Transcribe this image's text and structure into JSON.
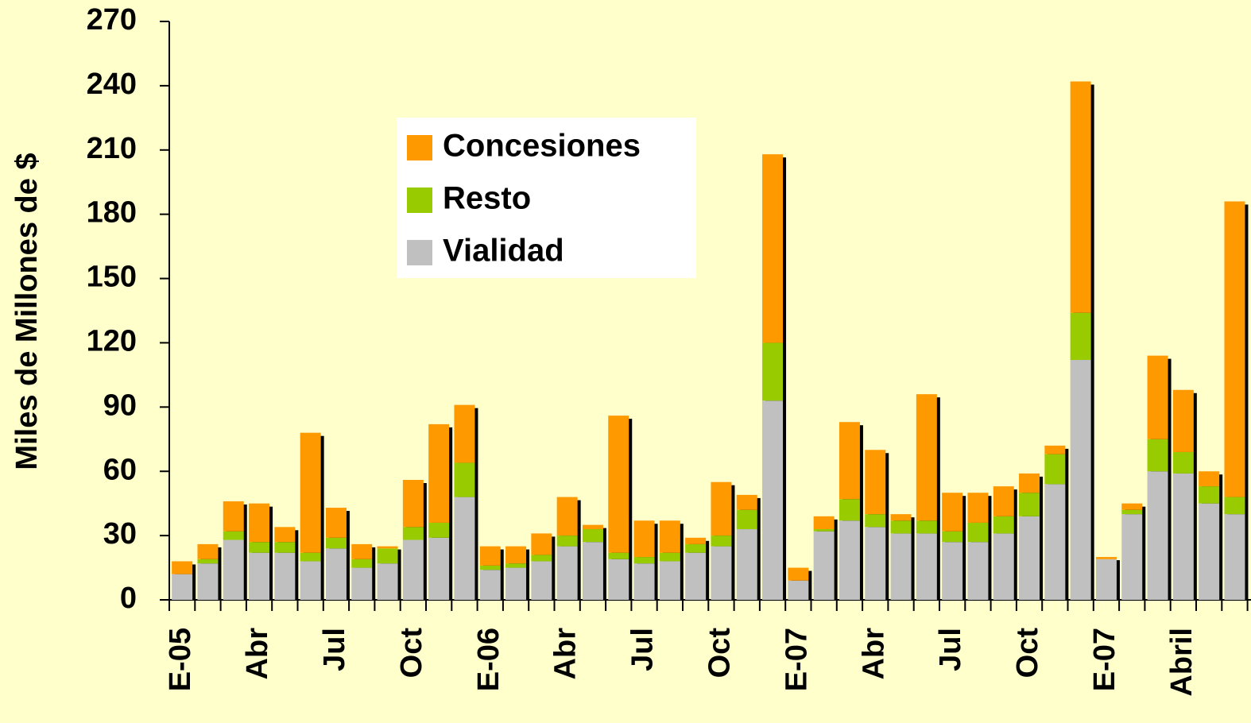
{
  "chart_data": {
    "type": "stacked_bar",
    "ylabel": "Miles de Millones de $",
    "categories": [
      "E-05",
      null,
      null,
      "Abr",
      null,
      null,
      "Jul",
      null,
      null,
      "Oct",
      null,
      null,
      "E-06",
      null,
      null,
      "Abr",
      null,
      null,
      "Jul",
      null,
      null,
      "Oct",
      null,
      null,
      "E-07",
      null,
      null,
      "Abr",
      null,
      null,
      "Jul",
      null,
      null,
      "Oct",
      null,
      null,
      "E-07",
      null,
      null,
      "Abril",
      null,
      null
    ],
    "series": [
      {
        "name": "Vialidad",
        "color": "#c0c0c0",
        "values": [
          12,
          17,
          28,
          22,
          22,
          18,
          24,
          15,
          17,
          28,
          29,
          48,
          14,
          15,
          18,
          25,
          27,
          19,
          17,
          18,
          22,
          25,
          33,
          93,
          9,
          32,
          37,
          34,
          31,
          31,
          27,
          27,
          31,
          39,
          54,
          112,
          19,
          40,
          60,
          59,
          45,
          40
        ]
      },
      {
        "name": "Resto",
        "color": "#99cc00",
        "values": [
          0,
          2,
          4,
          5,
          5,
          4,
          5,
          4,
          7,
          6,
          7,
          16,
          2,
          2,
          3,
          5,
          6,
          3,
          3,
          4,
          4,
          5,
          9,
          27,
          0,
          1,
          10,
          6,
          6,
          6,
          5,
          9,
          8,
          11,
          14,
          22,
          0,
          2,
          15,
          10,
          8,
          8
        ]
      },
      {
        "name": "Concesiones",
        "color": "#ff9900",
        "values": [
          6,
          7,
          14,
          18,
          7,
          56,
          14,
          7,
          1,
          22,
          46,
          27,
          9,
          8,
          10,
          18,
          2,
          64,
          17,
          15,
          3,
          25,
          7,
          88,
          6,
          6,
          36,
          30,
          3,
          59,
          18,
          14,
          14,
          9,
          4,
          108,
          1,
          3,
          39,
          29,
          7,
          138
        ]
      }
    ],
    "ylim": [
      0,
      270
    ],
    "yticks": [
      0,
      30,
      60,
      90,
      120,
      150,
      180,
      210,
      240,
      270
    ],
    "legend": "upper-left"
  }
}
